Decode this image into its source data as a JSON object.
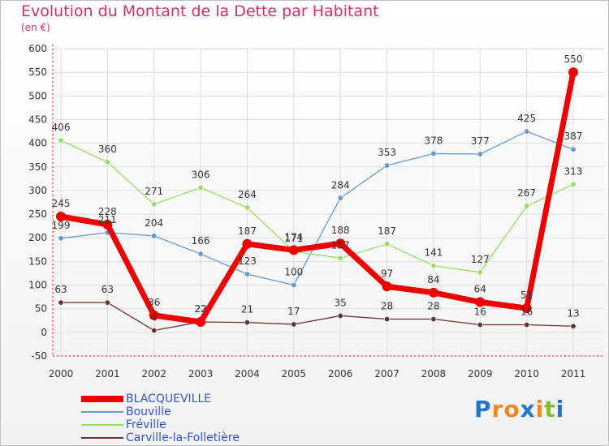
{
  "header": {
    "title": "Evolution du Montant de la Dette par Habitant",
    "subtitle": "(en €)"
  },
  "colors": {
    "BLACQUEVILLE": "#ee0000",
    "Bouville": "#6699cc",
    "Fréville": "#99dd66",
    "Carville-la-Folletière": "#663333",
    "axis": "#ff0000",
    "grid": "#dddddd",
    "title": "#cc3366",
    "legend_text": "#3355cc"
  },
  "logo": {
    "letters": [
      "P",
      "r",
      "o",
      "x",
      "i",
      "t",
      "i"
    ],
    "letter_colors": [
      "#2277cc",
      "#ee8822",
      "#ee8822",
      "#2277cc",
      "#ee8822",
      "#88bb22",
      "#2277cc"
    ]
  },
  "chart_data": {
    "type": "line",
    "title": "Evolution du Montant de la Dette par Habitant",
    "subtitle": "(en €)",
    "xlabel": "",
    "ylabel": "",
    "x": [
      "2000",
      "2001",
      "2002",
      "2003",
      "2004",
      "2005",
      "2006",
      "2007",
      "2008",
      "2009",
      "2010",
      "2011"
    ],
    "ylim": [
      -50,
      600
    ],
    "yticks": [
      -50,
      0,
      50,
      100,
      150,
      200,
      250,
      300,
      350,
      400,
      450,
      500,
      550,
      600
    ],
    "grid": true,
    "legend_position": "bottom-left",
    "series": [
      {
        "name": "BLACQUEVILLE",
        "values": [
          245,
          228,
          36,
          22,
          187,
          174,
          188,
          97,
          84,
          64,
          51,
          550
        ]
      },
      {
        "name": "Bouville",
        "values": [
          199,
          211,
          204,
          166,
          123,
          100,
          284,
          353,
          378,
          377,
          425,
          387
        ]
      },
      {
        "name": "Fréville",
        "values": [
          406,
          360,
          271,
          306,
          264,
          171,
          157,
          187,
          141,
          127,
          267,
          313
        ]
      },
      {
        "name": "Carville-la-Folletière",
        "values": [
          63,
          63,
          4,
          22,
          21,
          17,
          35,
          28,
          28,
          16,
          16,
          13
        ]
      }
    ]
  }
}
